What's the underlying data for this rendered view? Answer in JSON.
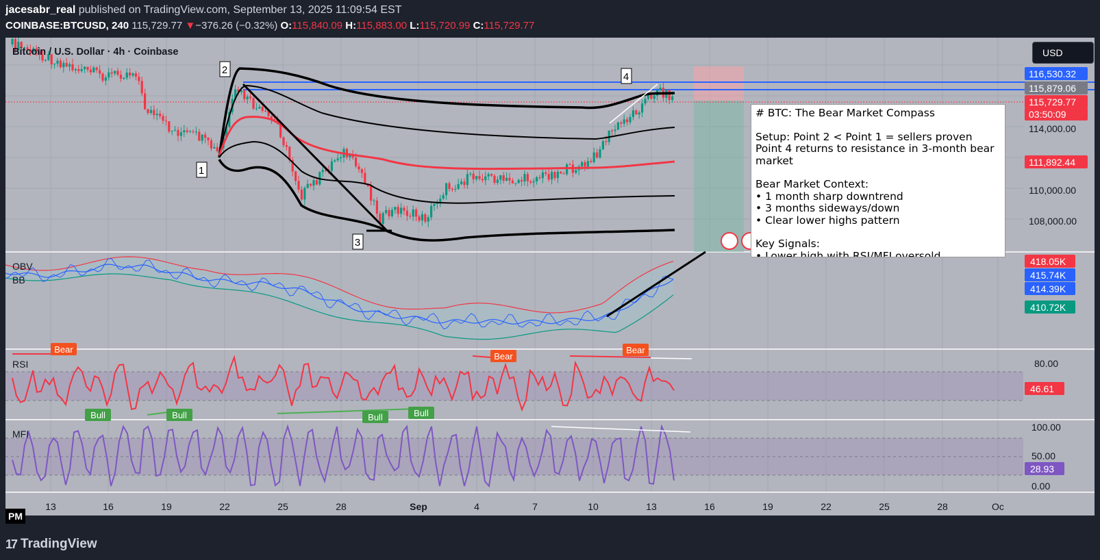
{
  "header": {
    "publisher_user": "jacesabr_real",
    "publisher_text": " published on TradingView.com, September 13, 2025 11:09:54 EST",
    "symbol": "COINBASE:BTCUSD",
    "interval": ", 240",
    "last": "115,729.77",
    "change_arrow": "▼",
    "change": "−376.26 (−0.32%)",
    "o_label": "O:",
    "o_val": "115,840.09",
    "h_label": "H:",
    "h_val": "115,883.00",
    "l_label": "L:",
    "l_val": "115,720.99",
    "c_label": "C:",
    "c_val": "115,729.77"
  },
  "chart_title": "Bitcoin / U.S. Dollar · 4h · Coinbase",
  "currency_button": "USD",
  "pm_label": "PM",
  "footer_brand": "TradingView",
  "colors": {
    "background": "#b2b5be",
    "red": "#f23645",
    "green": "#089981",
    "blue_line": "#2962ff",
    "rsi": "#f23645",
    "mfi": "#7e57c2"
  },
  "note": {
    "lines": [
      "# BTC: The Bear Market Compass",
      "",
      "Setup: Point 2 < Point 1 = sellers proven",
      "Point 4 returns to resistance in 3-month bear",
      "market",
      "",
      "Bear Market Context:",
      "• 1 month sharp downtrend",
      "• 3 months sideways/down",
      "• Clear lower highs pattern",
      "",
      "Key Signals:",
      "• Lower high with RSI/MFI oversold"
    ]
  },
  "chart_data": {
    "type": "line",
    "x_ticks": [
      "13",
      "16",
      "19",
      "22",
      "25",
      "28",
      "Sep",
      "4",
      "7",
      "10",
      "13",
      "16",
      "19",
      "22",
      "25",
      "28",
      "Oc"
    ],
    "price_axis": {
      "ticks": [
        "114,000.00",
        "112,000.00",
        "110,000.00",
        "108,000.00"
      ],
      "labels": [
        {
          "text": "116,530.32",
          "kind": "blue"
        },
        {
          "text": "115,879.06",
          "kind": "gray"
        },
        {
          "text": "115,729.77",
          "kind": "red"
        },
        {
          "text": "03:50:09",
          "kind": "red"
        },
        {
          "text": "111,892.44",
          "kind": "red"
        }
      ]
    },
    "price_points": [
      {
        "label": "1",
        "date": "Aug 21"
      },
      {
        "label": "2",
        "date": "Aug 22"
      },
      {
        "label": "3",
        "date": "Aug 30"
      },
      {
        "label": "4",
        "date": "Sep 12"
      }
    ],
    "resistance_levels": [
      116530.32,
      115879.06
    ],
    "close": 115729.77,
    "obv_pane": {
      "labels": [
        "OBV",
        "BB"
      ],
      "values": [
        "418.05K",
        "415.74K",
        "414.39K",
        "410.72K"
      ]
    },
    "rsi_pane": {
      "label": "RSI",
      "ticks": [
        "80.00"
      ],
      "value": "46.61",
      "divergence_tags": [
        "Bear",
        "Bear",
        "Bear",
        "Bull",
        "Bull",
        "Bull",
        "Bull"
      ]
    },
    "mfi_pane": {
      "label": "MFI",
      "ticks": [
        "100.00",
        "50.00",
        "0.00"
      ],
      "value": "28.93"
    }
  }
}
